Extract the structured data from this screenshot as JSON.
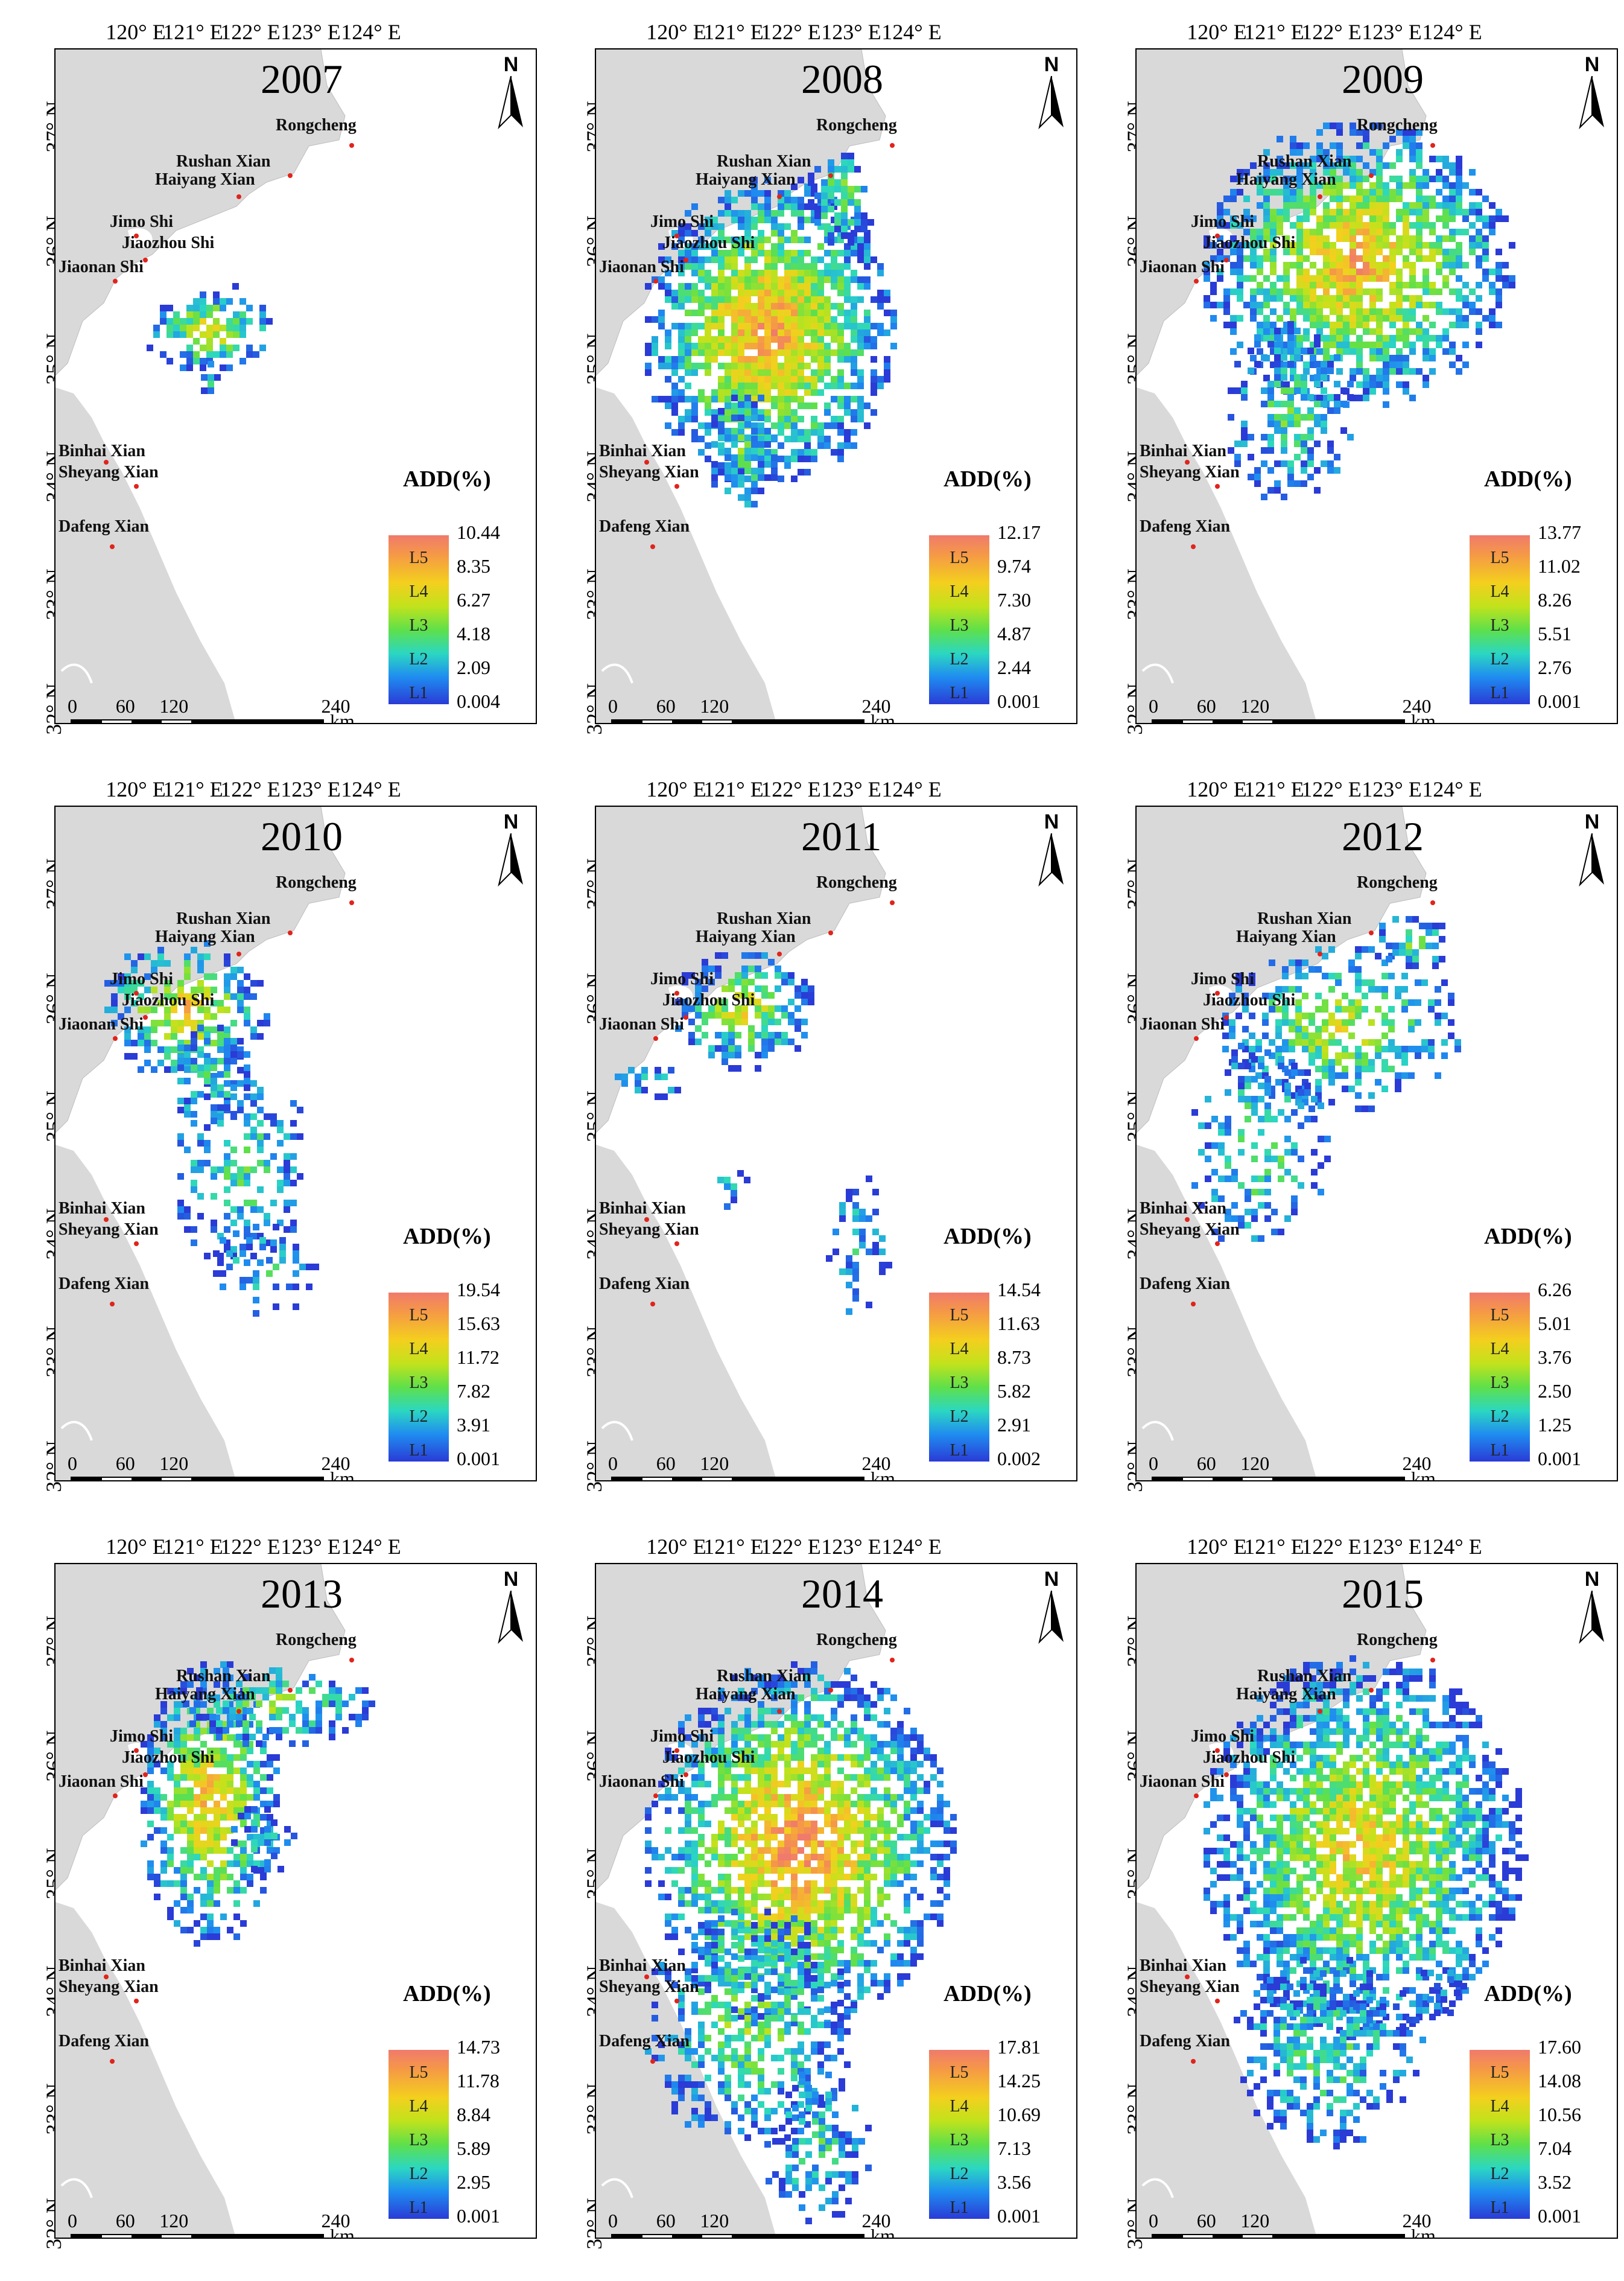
{
  "figure": {
    "longitude_labels": [
      "120° E",
      "121° E",
      "122° E",
      "123° E",
      "124° E"
    ],
    "latitude_labels": [
      "37° N",
      "36° N",
      "35° N",
      "34° N",
      "33° N",
      "32° N"
    ],
    "legend_title": "ADD(%)",
    "legend_levels": [
      "L5",
      "L4",
      "L3",
      "L2",
      "L1"
    ],
    "north_label": "N",
    "scale_labels": [
      "0",
      "60",
      "120",
      "240"
    ],
    "scale_unit": "km",
    "places": [
      "Rongcheng",
      "Rushan Xian",
      "Haiyang Xian",
      "Jimo Shi",
      "Jiaozhou Shi",
      "Jiaonan Shi",
      "Binhai Xian",
      "Sheyang Xian",
      "Dafeng Xian"
    ],
    "colors": {
      "land": "#d9d9d9",
      "coast_line": "#ffffff",
      "place_dot": "#e0241b",
      "grid_low": "#2a3bd6",
      "grid_high": "#f07a6c"
    }
  },
  "panels": [
    {
      "year": "2007",
      "legend_values": [
        "10.44",
        "8.35",
        "6.27",
        "4.18",
        "2.09",
        "0.004"
      ]
    },
    {
      "year": "2008",
      "legend_values": [
        "12.17",
        "9.74",
        "7.30",
        "4.87",
        "2.44",
        "0.001"
      ]
    },
    {
      "year": "2009",
      "legend_values": [
        "13.77",
        "11.02",
        "8.26",
        "5.51",
        "2.76",
        "0.001"
      ]
    },
    {
      "year": "2010",
      "legend_values": [
        "19.54",
        "15.63",
        "11.72",
        "7.82",
        "3.91",
        "0.001"
      ]
    },
    {
      "year": "2011",
      "legend_values": [
        "14.54",
        "11.63",
        "8.73",
        "5.82",
        "2.91",
        "0.002"
      ]
    },
    {
      "year": "2012",
      "legend_values": [
        "6.26",
        "5.01",
        "3.76",
        "2.50",
        "1.25",
        "0.001"
      ]
    },
    {
      "year": "2013",
      "legend_values": [
        "14.73",
        "11.78",
        "8.84",
        "5.89",
        "2.95",
        "0.001"
      ]
    },
    {
      "year": "2014",
      "legend_values": [
        "17.81",
        "14.25",
        "10.69",
        "7.13",
        "3.56",
        "0.001"
      ]
    },
    {
      "year": "2015",
      "legend_values": [
        "17.60",
        "14.08",
        "10.56",
        "7.04",
        "3.52",
        "0.001"
      ]
    }
  ]
}
